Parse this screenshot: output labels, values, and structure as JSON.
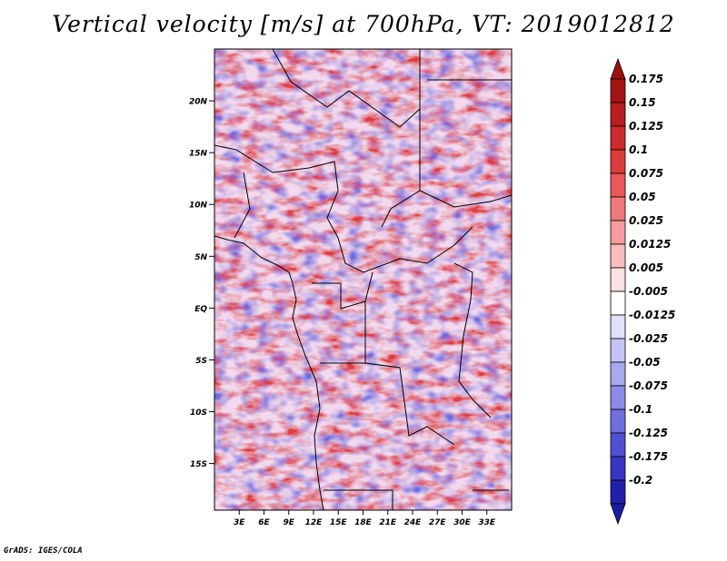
{
  "title": "Vertical velocity [m/s] at 700hPa, VT: 2019012812",
  "credit": "GrADS: IGES/COLA",
  "map": {
    "lon_range": [
      0,
      36
    ],
    "lat_range": [
      -19.5,
      25
    ],
    "lat_ticks": [
      {
        "lat": 20,
        "label": "20N"
      },
      {
        "lat": 15,
        "label": "15N"
      },
      {
        "lat": 10,
        "label": "10N"
      },
      {
        "lat": 5,
        "label": "5N"
      },
      {
        "lat": 0,
        "label": "EQ"
      },
      {
        "lat": -5,
        "label": "5S"
      },
      {
        "lat": -10,
        "label": "10S"
      },
      {
        "lat": -15,
        "label": "15S"
      }
    ],
    "lon_ticks": [
      {
        "lon": 3,
        "label": "3E"
      },
      {
        "lon": 6,
        "label": "6E"
      },
      {
        "lon": 9,
        "label": "9E"
      },
      {
        "lon": 12,
        "label": "12E"
      },
      {
        "lon": 15,
        "label": "15E"
      },
      {
        "lon": 18,
        "label": "18E"
      },
      {
        "lon": 21,
        "label": "21E"
      },
      {
        "lon": 24,
        "label": "24E"
      },
      {
        "lon": 27,
        "label": "27E"
      },
      {
        "lon": 30,
        "label": "30E"
      },
      {
        "lon": 33,
        "label": "33E"
      }
    ]
  },
  "colorbar": {
    "levels": [
      {
        "label": "0.175",
        "color": "#a51414"
      },
      {
        "label": "0.15",
        "color": "#b81e1e"
      },
      {
        "label": "0.125",
        "color": "#cc2b2b"
      },
      {
        "label": "0.1",
        "color": "#dc3c3c"
      },
      {
        "label": "0.075",
        "color": "#e85858"
      },
      {
        "label": "0.05",
        "color": "#f07a7a"
      },
      {
        "label": "0.025",
        "color": "#f59c9c"
      },
      {
        "label": "0.0125",
        "color": "#fabcbc"
      },
      {
        "label": "0.005",
        "color": "#fde0e0"
      },
      {
        "label": "-0.005",
        "color": "#ffffff"
      },
      {
        "label": "-0.0125",
        "color": "#e0e0fb"
      },
      {
        "label": "-0.025",
        "color": "#c4c4f6"
      },
      {
        "label": "-0.05",
        "color": "#a8a8f0"
      },
      {
        "label": "-0.075",
        "color": "#8c8ce8"
      },
      {
        "label": "-0.1",
        "color": "#6e6ede"
      },
      {
        "label": "-0.125",
        "color": "#5050d2"
      },
      {
        "label": "-0.175",
        "color": "#3636c2"
      },
      {
        "label": "-0.2",
        "color": "#2020aa"
      }
    ],
    "top_color": "#9c1010",
    "bottom_color": "#1c1ca0"
  }
}
